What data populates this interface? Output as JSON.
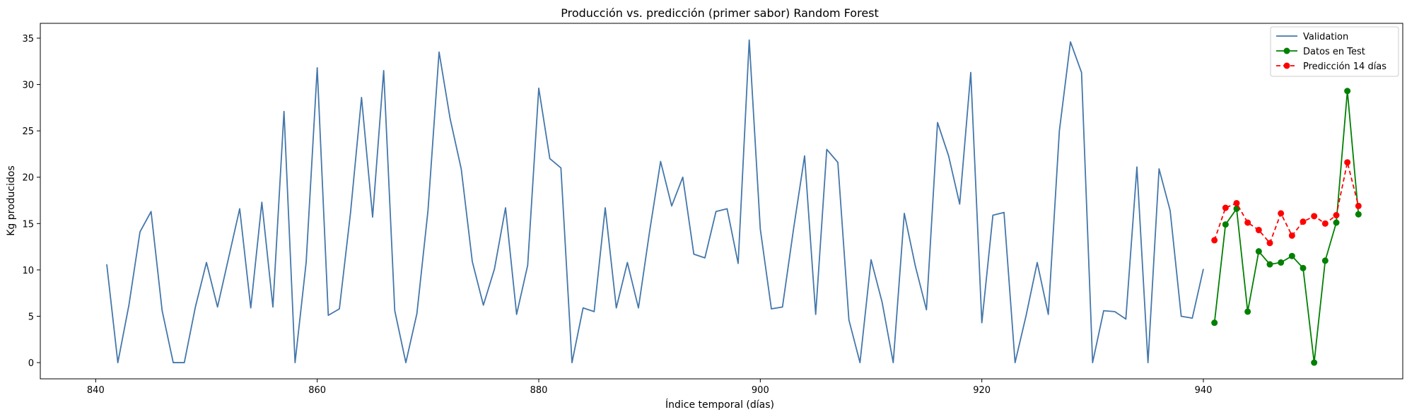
{
  "chart_data": {
    "type": "line",
    "title": "Producción vs. predicción (primer sabor) Random Forest",
    "xlabel": "Índice temporal (días)",
    "ylabel": "Kg producidos",
    "xlim": [
      835,
      958
    ],
    "ylim": [
      -1.75,
      36.6
    ],
    "xticks": [
      840,
      860,
      880,
      900,
      920,
      940
    ],
    "yticks": [
      0,
      5,
      10,
      15,
      20,
      25,
      30,
      35
    ],
    "grid": false,
    "legend_position": "top-right",
    "series": [
      {
        "name": "Validation",
        "color": "#4477aa",
        "marker": "none",
        "dash": "solid",
        "x": [
          841,
          842,
          843,
          844,
          845,
          846,
          847,
          848,
          849,
          850,
          851,
          852,
          853,
          854,
          855,
          856,
          857,
          858,
          859,
          860,
          861,
          862,
          863,
          864,
          865,
          866,
          867,
          868,
          869,
          870,
          871,
          872,
          873,
          874,
          875,
          876,
          877,
          878,
          879,
          880,
          881,
          882,
          883,
          884,
          885,
          886,
          887,
          888,
          889,
          890,
          891,
          892,
          893,
          894,
          895,
          896,
          897,
          898,
          899,
          900,
          901,
          902,
          903,
          904,
          905,
          906,
          907,
          908,
          909,
          910,
          911,
          912,
          913,
          914,
          915,
          916,
          917,
          918,
          919,
          920,
          921,
          922,
          923,
          924,
          925,
          926,
          927,
          928,
          929,
          930,
          931,
          932,
          933,
          934,
          935,
          936,
          937,
          938,
          939,
          940
        ],
        "values": [
          10.6,
          0.0,
          6.2,
          14.1,
          16.3,
          5.6,
          0.0,
          0.0,
          6.0,
          10.8,
          6.0,
          11.3,
          16.6,
          5.9,
          17.3,
          6.0,
          27.1,
          0.0,
          10.8,
          31.8,
          5.1,
          5.8,
          16.1,
          28.6,
          15.7,
          31.5,
          5.6,
          0.0,
          5.3,
          16.4,
          33.5,
          26.3,
          20.9,
          10.9,
          6.2,
          10.1,
          16.7,
          5.2,
          10.5,
          29.6,
          22.0,
          21.0,
          0.0,
          5.9,
          5.5,
          16.7,
          5.9,
          10.8,
          5.9,
          14.1,
          21.7,
          16.9,
          20.0,
          11.7,
          11.3,
          16.3,
          16.6,
          10.7,
          34.8,
          14.4,
          5.8,
          6.0,
          14.4,
          22.3,
          5.2,
          23.0,
          21.6,
          4.6,
          0.0,
          11.1,
          6.5,
          0.0,
          16.1,
          10.4,
          5.7,
          25.9,
          22.3,
          17.1,
          31.3,
          4.3,
          15.9,
          16.2,
          0.0,
          5.1,
          10.8,
          5.2,
          25.0,
          34.6,
          31.3,
          0.0,
          5.6,
          5.5,
          4.7,
          21.1,
          0.0,
          20.9,
          16.4,
          5.0,
          4.8,
          10.1
        ]
      },
      {
        "name": "Datos en Test",
        "color": "#008000",
        "marker": "circle",
        "dash": "solid",
        "x": [
          941,
          942,
          943,
          944,
          945,
          946,
          947,
          948,
          949,
          950,
          951,
          952,
          953,
          954
        ],
        "values": [
          4.3,
          14.9,
          16.6,
          5.5,
          12.0,
          10.6,
          10.8,
          11.5,
          10.2,
          0.0,
          11.0,
          15.1,
          29.3,
          16.0
        ]
      },
      {
        "name": "Predicción 14 días",
        "color": "#ff0000",
        "marker": "circle",
        "dash": "dashed",
        "x": [
          941,
          942,
          943,
          944,
          945,
          946,
          947,
          948,
          949,
          950,
          951,
          952,
          953,
          954
        ],
        "values": [
          13.2,
          16.7,
          17.2,
          15.1,
          14.3,
          12.9,
          16.1,
          13.7,
          15.2,
          15.8,
          15.0,
          15.9,
          21.6,
          16.9
        ]
      }
    ]
  }
}
